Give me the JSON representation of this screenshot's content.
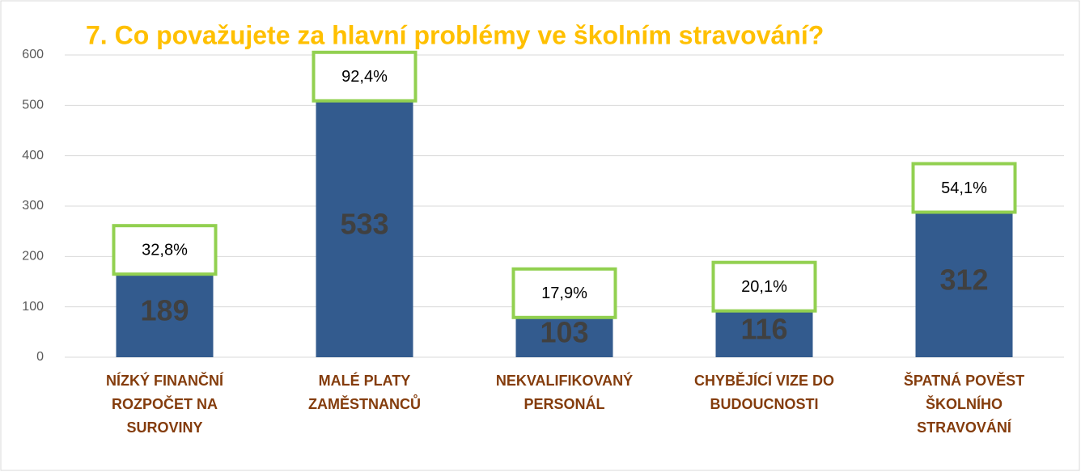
{
  "chart_data": {
    "type": "bar",
    "title": "7. Co považujete za hlavní problémy ve školním stravování?",
    "categories": [
      "NÍZKÝ FINANČNÍ ROZPOČET NA SUROVINY",
      "MALÉ PLATY ZAMĚSTNANCŮ",
      "NEKVALIFIKOVANÝ PERSONÁL",
      "CHYBĚJÍCÍ VIZE DO BUDOUCNOSTI",
      "ŠPATNÁ POVĚST ŠKOLNÍHO STRAVOVÁNÍ"
    ],
    "values": [
      189,
      533,
      103,
      116,
      312
    ],
    "annotations": [
      "32,8%",
      "92,4%",
      "17,9%",
      "20,1%",
      "54,1%"
    ],
    "color": "#335b8e",
    "ylim": [
      0,
      600
    ],
    "yticks": [
      0,
      100,
      200,
      300,
      400,
      500,
      600
    ],
    "grid": true
  }
}
